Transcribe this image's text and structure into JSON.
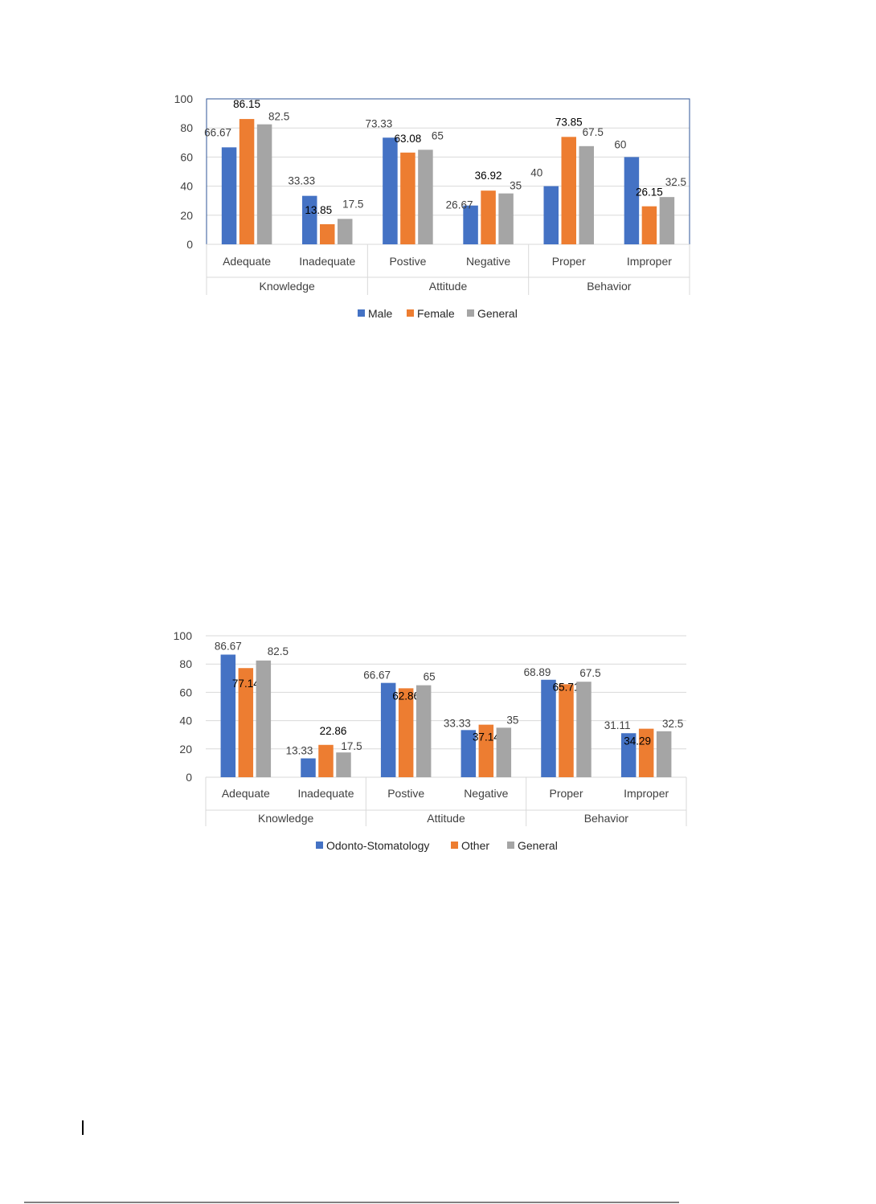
{
  "colors": {
    "series1": "#4472C4",
    "series2": "#ED7D31",
    "series3": "#A5A5A5"
  },
  "chart_data": [
    {
      "type": "bar",
      "title": "",
      "xlabel": "",
      "ylabel": "",
      "ylim": [
        0,
        100
      ],
      "yticks": [
        "0",
        "20",
        "40",
        "60",
        "80",
        "100"
      ],
      "groups": [
        "Knowledge",
        "Attitude",
        "Behavior"
      ],
      "categories": [
        "Adequate",
        "Inadequate",
        "Postive",
        "Negative",
        "Proper",
        "Improper"
      ],
      "legend_position": "bottom",
      "grid": true,
      "series": [
        {
          "name": "Male",
          "values": [
            66.67,
            33.33,
            73.33,
            26.67,
            40,
            60
          ],
          "labels": [
            "66.67",
            "33.33",
            "73.33",
            "26.67",
            "40",
            "60"
          ]
        },
        {
          "name": "Female",
          "values": [
            86.15,
            13.85,
            63.08,
            36.92,
            73.85,
            26.15
          ],
          "labels": [
            "86.15",
            "13.85",
            "63.08",
            "36.92",
            "73.85",
            "26.15"
          ]
        },
        {
          "name": "General",
          "values": [
            82.5,
            17.5,
            65,
            35,
            67.5,
            32.5
          ],
          "labels": [
            "82.5",
            "17.5",
            "65",
            "35",
            "67.5",
            "32.5"
          ]
        }
      ]
    },
    {
      "type": "bar",
      "title": "",
      "xlabel": "",
      "ylabel": "",
      "ylim": [
        0,
        100
      ],
      "yticks": [
        "0",
        "20",
        "40",
        "60",
        "80",
        "100"
      ],
      "groups": [
        "Knowledge",
        "Attitude",
        "Behavior"
      ],
      "categories": [
        "Adequate",
        "Inadequate",
        "Postive",
        "Negative",
        "Proper",
        "Improper"
      ],
      "legend_position": "bottom",
      "grid": true,
      "series": [
        {
          "name": "Odonto-Stomatology",
          "values": [
            86.67,
            13.33,
            66.67,
            33.33,
            68.89,
            31.11
          ],
          "labels": [
            "86.67",
            "13.33",
            "66.67",
            "33.33",
            "68.89",
            "31.11"
          ]
        },
        {
          "name": "Other",
          "values": [
            77.14,
            22.86,
            62.86,
            37.14,
            65.71,
            34.29
          ],
          "labels": [
            "77.14",
            "22.86",
            "62.86",
            "37.14",
            "65.71",
            "34.29"
          ]
        },
        {
          "name": "General",
          "values": [
            82.5,
            17.5,
            65,
            35,
            67.5,
            32.5
          ],
          "labels": [
            "82.5",
            "17.5",
            "65",
            "35",
            "67.5",
            "32.5"
          ]
        }
      ]
    }
  ]
}
